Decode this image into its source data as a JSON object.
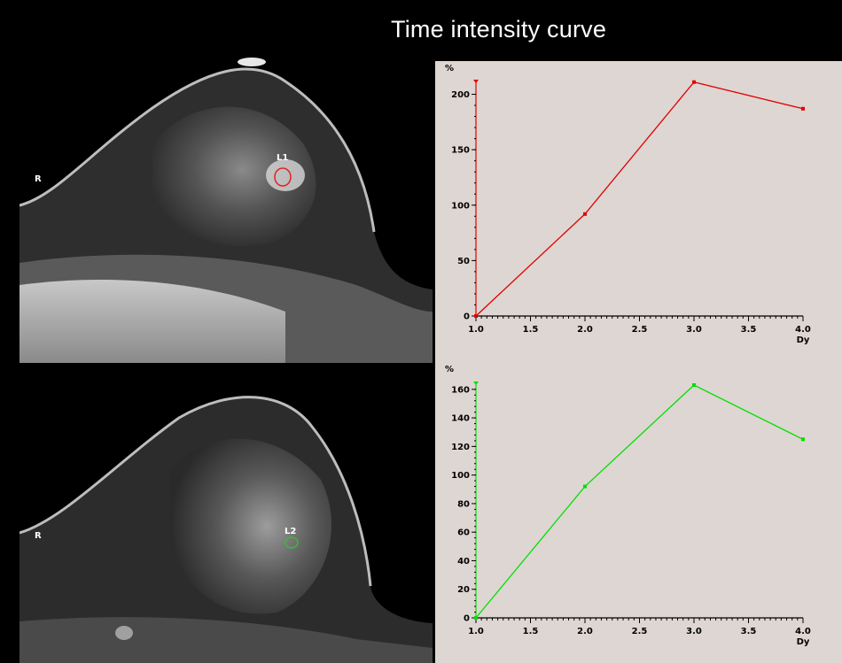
{
  "header": {
    "title": "Time intensity curve"
  },
  "images": [
    {
      "side_marker": "R",
      "roi_label": "L1",
      "roi_color": "#e02020"
    },
    {
      "side_marker": "R",
      "roi_label": "L2",
      "roi_color": "#30c030"
    }
  ],
  "chart_data": [
    {
      "type": "line",
      "title": "",
      "xlabel": "Dy",
      "ylabel": "%",
      "xlim": [
        1.0,
        4.0
      ],
      "ylim": [
        0,
        210
      ],
      "x_ticks": [
        "1.0",
        "1.5",
        "2.0",
        "2.5",
        "3.0",
        "3.5",
        "4.0"
      ],
      "y_ticks": [
        "0",
        "50",
        "100",
        "150",
        "200"
      ],
      "grid": false,
      "color": "#e00000",
      "series": [
        {
          "x": [
            1.0,
            2.0,
            3.0,
            4.0
          ],
          "y": [
            0,
            92,
            211,
            187
          ]
        }
      ]
    },
    {
      "type": "line",
      "title": "",
      "xlabel": "Dy",
      "ylabel": "%",
      "xlim": [
        1.0,
        4.0
      ],
      "ylim": [
        0,
        163
      ],
      "x_ticks": [
        "1.0",
        "1.5",
        "2.0",
        "2.5",
        "3.0",
        "3.5",
        "4.0"
      ],
      "y_ticks": [
        "0",
        "20",
        "40",
        "60",
        "80",
        "100",
        "120",
        "140",
        "160"
      ],
      "grid": false,
      "color": "#00e000",
      "series": [
        {
          "x": [
            1.0,
            2.0,
            3.0,
            4.0
          ],
          "y": [
            0,
            92,
            163,
            125
          ]
        }
      ]
    }
  ]
}
